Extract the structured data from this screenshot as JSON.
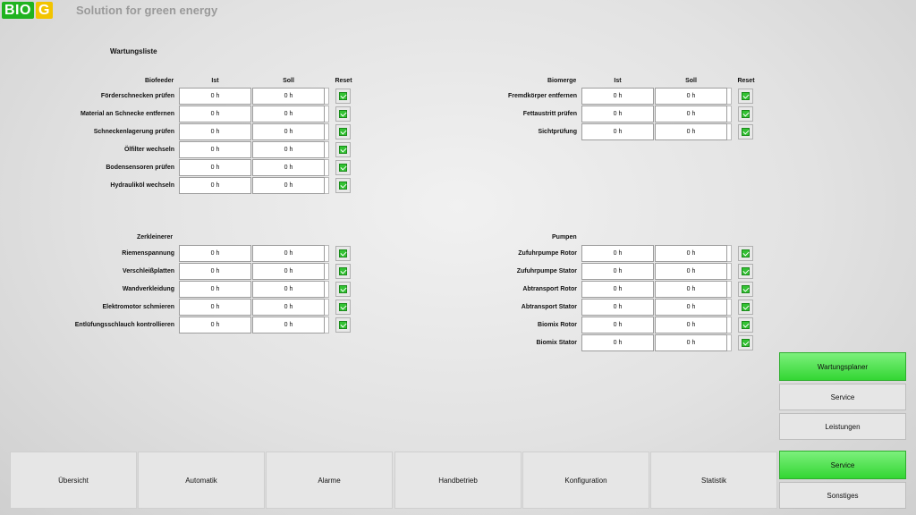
{
  "header": {
    "logo_left": "BIO",
    "logo_right": "G",
    "tagline": "Solution for green energy"
  },
  "page_title": "Wartungsliste",
  "columns": {
    "ist": "Ist",
    "soll": "Soll",
    "reset": "Reset"
  },
  "sections": {
    "biofeeder": {
      "title": "Biofeeder",
      "rows": [
        {
          "label": "Förderschnecken prüfen",
          "ist": "0 h",
          "soll": "0 h"
        },
        {
          "label": "Material an Schnecke entfernen",
          "ist": "0 h",
          "soll": "0 h"
        },
        {
          "label": "Schneckenlagerung prüfen",
          "ist": "0 h",
          "soll": "0 h"
        },
        {
          "label": "Ölfilter wechseln",
          "ist": "0 h",
          "soll": "0 h"
        },
        {
          "label": "Bodensensoren prüfen",
          "ist": "0 h",
          "soll": "0 h"
        },
        {
          "label": "Hydrauliköl wechseln",
          "ist": "0 h",
          "soll": "0 h"
        }
      ]
    },
    "biomerge": {
      "title": "Biomerge",
      "rows": [
        {
          "label": "Fremdkörper entfernen",
          "ist": "0 h",
          "soll": "0 h"
        },
        {
          "label": "Fettaustritt prüfen",
          "ist": "0 h",
          "soll": "0 h"
        },
        {
          "label": "Sichtprüfung",
          "ist": "0 h",
          "soll": "0 h"
        }
      ]
    },
    "zerkleinerer": {
      "title": "Zerkleinerer",
      "rows": [
        {
          "label": "Riemenspannung",
          "ist": "0 h",
          "soll": "0 h"
        },
        {
          "label": "Verschleißplatten",
          "ist": "0 h",
          "soll": "0 h"
        },
        {
          "label": "Wandverkleidung",
          "ist": "0 h",
          "soll": "0 h"
        },
        {
          "label": "Elektromotor schmieren",
          "ist": "0 h",
          "soll": "0 h"
        },
        {
          "label": "Entlüfungsschlauch kontrollieren",
          "ist": "0 h",
          "soll": "0 h"
        }
      ]
    },
    "pumpen": {
      "title": "Pumpen",
      "rows": [
        {
          "label": "Zufuhrpumpe Rotor",
          "ist": "0 h",
          "soll": "0 h"
        },
        {
          "label": "Zufuhrpumpe Stator",
          "ist": "0 h",
          "soll": "0 h"
        },
        {
          "label": "Abtransport Rotor",
          "ist": "0 h",
          "soll": "0 h"
        },
        {
          "label": "Abtransport Stator",
          "ist": "0 h",
          "soll": "0 h"
        },
        {
          "label": "Biomix Rotor",
          "ist": "0 h",
          "soll": "0 h"
        },
        {
          "label": "Biomix Stator",
          "ist": "0 h",
          "soll": "0 h"
        }
      ]
    }
  },
  "side_nav": {
    "wartungsplaner": "Wartungsplaner",
    "service": "Service",
    "leistungen": "Leistungen",
    "service_main": "Service",
    "sonstiges": "Sonstiges"
  },
  "bottom_nav": [
    "Übersicht",
    "Automatik",
    "Alarme",
    "Handbetrieb",
    "Konfiguration",
    "Statistik"
  ],
  "colors": {
    "active_green": "#33d633",
    "check_green": "#33c233",
    "logo_green": "#1fb31f",
    "logo_yellow": "#f2c400"
  }
}
